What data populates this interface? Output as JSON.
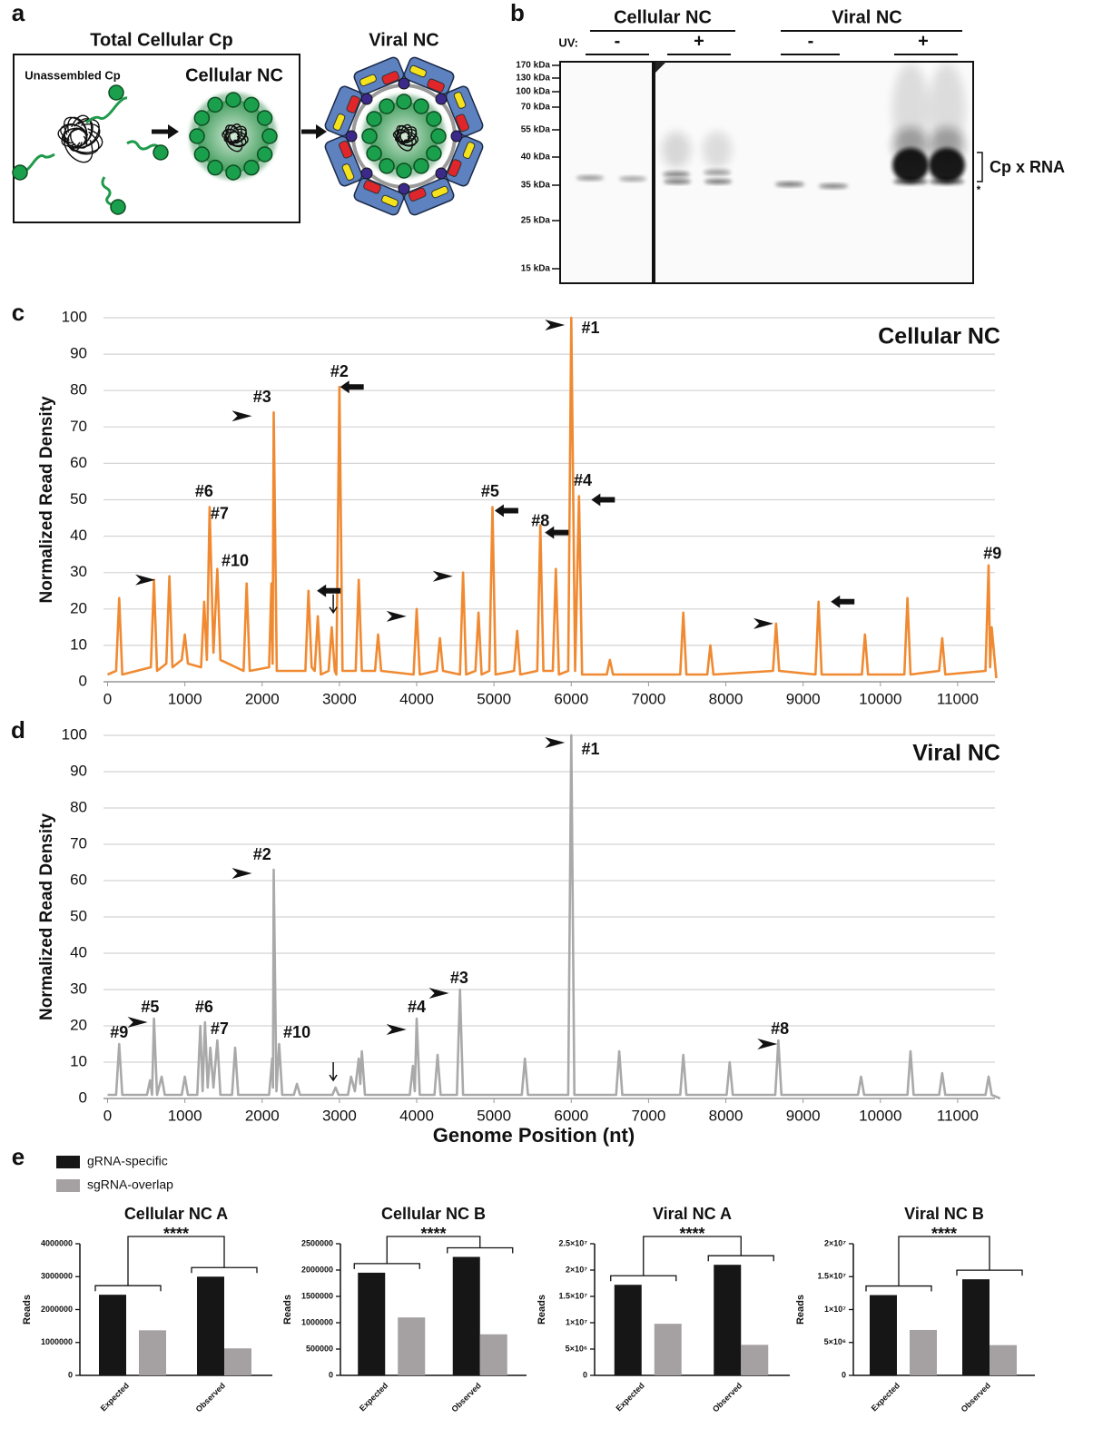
{
  "panel_labels": [
    "a",
    "b",
    "c",
    "d",
    "e"
  ],
  "panel_a": {
    "title": "Total Cellular Cp",
    "unassembled": "Unassembled Cp",
    "cellular_nc": "Cellular NC",
    "viral_nc": "Viral NC"
  },
  "panel_b": {
    "groups": [
      "Cellular NC",
      "Viral NC"
    ],
    "uv_label": "UV:",
    "uv": [
      "-",
      "+",
      "-",
      "+"
    ],
    "markers": [
      "170 kDa",
      "130 kDa",
      "100 kDa",
      "70 kDa",
      "55 kDa",
      "40 kDa",
      "35 kDa",
      "25 kDa",
      "15 kDa"
    ],
    "band_label": "Cp x RNA",
    "asterisk": "*"
  },
  "chart_data": [
    {
      "type": "line",
      "title": "Cellular NC",
      "title_color": "#ee6a2c",
      "ylabel": "Normalized Read Density",
      "color": "#f08a32",
      "x": [
        0,
        110,
        150,
        190,
        560,
        600,
        640,
        760,
        800,
        840,
        960,
        1000,
        1040,
        1210,
        1250,
        1285,
        1320,
        1370,
        1420,
        1460,
        1760,
        1800,
        1840,
        2090,
        2120,
        2135,
        2150,
        2190,
        2560,
        2600,
        2640,
        2680,
        2720,
        2760,
        2860,
        2900,
        2940,
        2960,
        3000,
        3040,
        3210,
        3250,
        3290,
        3460,
        3500,
        3540,
        3960,
        4000,
        4040,
        4260,
        4300,
        4340,
        4560,
        4600,
        4640,
        4760,
        4800,
        4840,
        4940,
        4980,
        5020,
        5260,
        5300,
        5340,
        5560,
        5600,
        5640,
        5760,
        5800,
        5840,
        5960,
        6000,
        6050,
        6100,
        6140,
        6460,
        6500,
        6540,
        7410,
        7450,
        7490,
        7760,
        7800,
        7840,
        8610,
        8650,
        8690,
        9160,
        9200,
        9240,
        9760,
        9800,
        9840,
        10310,
        10350,
        10390,
        10760,
        10800,
        10840,
        11360,
        11400,
        11420,
        11440,
        11500
      ],
      "values": [
        2,
        3,
        23,
        2,
        4,
        28,
        3,
        5,
        29,
        4,
        6,
        13,
        5,
        4,
        22,
        6,
        48,
        8,
        31,
        6,
        3,
        27,
        3,
        4,
        27,
        5,
        74,
        3,
        3,
        25,
        4,
        3,
        18,
        2,
        3,
        15,
        3,
        2,
        81,
        3,
        3,
        28,
        3,
        3,
        13,
        3,
        2,
        20,
        2,
        3,
        12,
        3,
        2,
        30,
        2,
        3,
        19,
        2,
        3,
        48,
        2,
        3,
        14,
        2,
        3,
        43,
        3,
        3,
        31,
        2,
        3,
        100,
        3,
        51,
        2,
        2,
        6,
        2,
        2,
        19,
        2,
        2,
        10,
        2,
        3,
        16,
        3,
        2,
        22,
        2,
        2,
        13,
        2,
        2,
        23,
        2,
        3,
        12,
        2,
        3,
        32,
        4,
        15,
        1
      ],
      "xlim": [
        -100,
        11600
      ],
      "xticks": [
        0,
        1000,
        2000,
        3000,
        4000,
        5000,
        6000,
        7000,
        8000,
        9000,
        10000,
        11000
      ],
      "ylim": [
        0,
        100
      ],
      "yticks": [
        0,
        10,
        20,
        30,
        40,
        50,
        60,
        70,
        80,
        90,
        100
      ],
      "grid": true,
      "annotations": [
        "#1",
        "#2",
        "#3",
        "#4",
        "#5",
        "#6",
        "#7",
        "#8",
        "#9",
        "#10"
      ]
    },
    {
      "type": "line",
      "title": "Viral NC",
      "title_color": "#7d7266",
      "ylabel": "Normalized Read Density",
      "xlabel": "Genome Position (nt)",
      "color": "#a9a9a9",
      "x": [
        0,
        110,
        150,
        190,
        510,
        550,
        575,
        600,
        640,
        700,
        740,
        960,
        1000,
        1040,
        1160,
        1200,
        1230,
        1260,
        1295,
        1330,
        1370,
        1420,
        1460,
        1610,
        1650,
        1690,
        2090,
        2130,
        2140,
        2150,
        2185,
        2220,
        2260,
        2410,
        2450,
        2490,
        2910,
        2950,
        2990,
        3110,
        3150,
        3200,
        3250,
        3270,
        3290,
        3330,
        3910,
        3950,
        3975,
        4000,
        4040,
        4230,
        4270,
        4310,
        4520,
        4560,
        4600,
        5360,
        5400,
        5440,
        5960,
        6000,
        6040,
        6580,
        6620,
        6660,
        7410,
        7450,
        7490,
        8010,
        8050,
        8090,
        8640,
        8680,
        8720,
        9710,
        9750,
        9790,
        10350,
        10390,
        10430,
        10760,
        10800,
        10840,
        11360,
        11400,
        11440,
        11550
      ],
      "values": [
        1,
        1,
        15,
        1,
        1,
        5,
        1,
        22,
        1,
        6,
        1,
        1,
        6,
        1,
        1,
        20,
        2,
        21,
        3,
        14,
        3,
        16,
        1,
        1,
        14,
        1,
        1,
        11,
        3,
        63,
        2,
        15,
        1,
        1,
        4,
        1,
        1,
        3,
        1,
        1,
        6,
        2,
        11,
        4,
        13,
        1,
        1,
        9,
        2,
        22,
        1,
        1,
        12,
        1,
        1,
        30,
        1,
        1,
        11,
        1,
        1,
        100,
        1,
        1,
        13,
        1,
        1,
        12,
        1,
        1,
        10,
        1,
        1,
        16,
        1,
        1,
        6,
        1,
        1,
        13,
        1,
        1,
        7,
        1,
        1,
        6,
        1,
        0
      ],
      "xlim": [
        -100,
        11600
      ],
      "xticks": [
        0,
        1000,
        2000,
        3000,
        4000,
        5000,
        6000,
        7000,
        8000,
        9000,
        10000,
        11000
      ],
      "ylim": [
        0,
        100
      ],
      "yticks": [
        0,
        10,
        20,
        30,
        40,
        50,
        60,
        70,
        80,
        90,
        100
      ],
      "grid": true,
      "annotations": [
        "#1",
        "#2",
        "#3",
        "#4",
        "#5",
        "#6",
        "#7",
        "#8",
        "#9",
        "#10"
      ]
    },
    {
      "type": "bar",
      "title": "Cellular NC A",
      "ylabel": "Reads",
      "categories": [
        "Expected",
        "Observed"
      ],
      "significance": "****",
      "series": [
        {
          "name": "gRNA-specific",
          "color": "#161616",
          "values": [
            2450000,
            3000000
          ]
        },
        {
          "name": "sgRNA-overlap",
          "color": "#a5a1a3",
          "values": [
            1370000,
            820000
          ]
        }
      ],
      "ylim": [
        0,
        4000000
      ],
      "yticks": [
        0,
        1000000,
        2000000,
        3000000,
        4000000
      ]
    },
    {
      "type": "bar",
      "title": "Cellular NC B",
      "ylabel": "Reads",
      "categories": [
        "Expected",
        "Observed"
      ],
      "significance": "****",
      "series": [
        {
          "name": "gRNA-specific",
          "color": "#161616",
          "values": [
            1950000,
            2250000
          ]
        },
        {
          "name": "sgRNA-overlap",
          "color": "#a5a1a3",
          "values": [
            1100000,
            780000
          ]
        }
      ],
      "ylim": [
        0,
        2500000
      ],
      "yticks": [
        0,
        500000,
        1000000,
        1500000,
        2000000,
        2500000
      ]
    },
    {
      "type": "bar",
      "title": "Viral NC A",
      "ylabel": "Reads",
      "categories": [
        "Expected",
        "Observed"
      ],
      "significance": "****",
      "series": [
        {
          "name": "gRNA-specific",
          "color": "#161616",
          "values": [
            17200000,
            21000000
          ]
        },
        {
          "name": "sgRNA-overlap",
          "color": "#a5a1a3",
          "values": [
            9800000,
            5800000
          ]
        }
      ],
      "ylim": [
        0,
        25000000
      ],
      "yticks": [
        0,
        {
          "value": 5000000,
          "label": "5×10⁶"
        },
        {
          "value": 10000000,
          "label": "1×10⁷"
        },
        {
          "value": 15000000,
          "label": "1.5×10⁷"
        },
        {
          "value": 20000000,
          "label": "2×10⁷"
        },
        {
          "value": 25000000,
          "label": "2.5×10⁷"
        }
      ]
    },
    {
      "type": "bar",
      "title": "Viral NC B",
      "ylabel": "Reads",
      "categories": [
        "Expected",
        "Observed"
      ],
      "significance": "****",
      "series": [
        {
          "name": "gRNA-specific",
          "color": "#161616",
          "values": [
            12200000,
            14600000
          ]
        },
        {
          "name": "sgRNA-overlap",
          "color": "#a5a1a3",
          "values": [
            6900000,
            4600000
          ]
        }
      ],
      "ylim": [
        0,
        20000000
      ],
      "yticks": [
        0,
        {
          "value": 5000000,
          "label": "5×10⁶"
        },
        {
          "value": 10000000,
          "label": "1×10⁷"
        },
        {
          "value": 15000000,
          "label": "1.5×10⁷"
        },
        {
          "value": 20000000,
          "label": "2×10⁷"
        }
      ]
    }
  ]
}
